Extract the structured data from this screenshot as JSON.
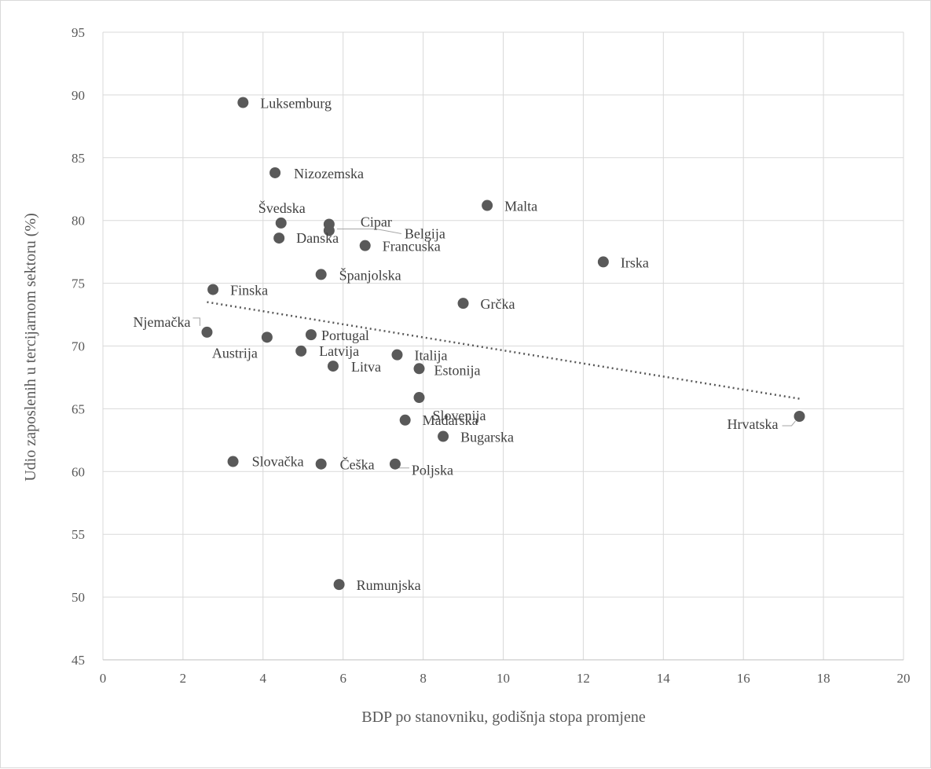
{
  "chart_data": {
    "type": "scatter",
    "xlabel": "BDP po stanovniku, godišnja stopa promjene",
    "ylabel": "Udio zaposlenih u tercijarnom sektoru (%)",
    "xlim": [
      0,
      20
    ],
    "ylim": [
      45,
      95
    ],
    "x_ticks": [
      "0",
      "2",
      "4",
      "6",
      "8",
      "10",
      "12",
      "14",
      "16",
      "18",
      "20"
    ],
    "y_ticks": [
      "45",
      "50",
      "55",
      "60",
      "65",
      "70",
      "75",
      "80",
      "85",
      "90",
      "95"
    ],
    "grid": true,
    "points": [
      {
        "label": "Luksemburg",
        "x": 3.5,
        "y": 89.4
      },
      {
        "label": "Nizozemska",
        "x": 4.3,
        "y": 83.8
      },
      {
        "label": "Malta",
        "x": 9.6,
        "y": 81.2
      },
      {
        "label": "Švedska",
        "x": 4.45,
        "y": 79.8
      },
      {
        "label": "Cipar",
        "x": 5.65,
        "y": 79.7
      },
      {
        "label": "Belgija",
        "x": 5.65,
        "y": 79.2
      },
      {
        "label": "Danska",
        "x": 4.4,
        "y": 78.6
      },
      {
        "label": "Francuska",
        "x": 6.55,
        "y": 78.0
      },
      {
        "label": "Irska",
        "x": 12.5,
        "y": 76.7
      },
      {
        "label": "Španjolska",
        "x": 5.45,
        "y": 75.7
      },
      {
        "label": "Finska",
        "x": 2.75,
        "y": 74.5
      },
      {
        "label": "Grčka",
        "x": 9.0,
        "y": 73.4
      },
      {
        "label": "Njemačka",
        "x": 2.6,
        "y": 71.1
      },
      {
        "label": "Austrija",
        "x": 4.1,
        "y": 70.7
      },
      {
        "label": "Portugal",
        "x": 5.2,
        "y": 70.9
      },
      {
        "label": "Latvija",
        "x": 4.95,
        "y": 69.6
      },
      {
        "label": "Italija",
        "x": 7.35,
        "y": 69.3
      },
      {
        "label": "Litva",
        "x": 5.75,
        "y": 68.4
      },
      {
        "label": "Estonija",
        "x": 7.9,
        "y": 68.2
      },
      {
        "label": "Slovenija",
        "x": 7.9,
        "y": 65.9
      },
      {
        "label": "Mađarska",
        "x": 7.55,
        "y": 64.1
      },
      {
        "label": "Hrvatska",
        "x": 17.4,
        "y": 64.4
      },
      {
        "label": "Bugarska",
        "x": 8.5,
        "y": 62.8
      },
      {
        "label": "Slovačka",
        "x": 3.25,
        "y": 60.8
      },
      {
        "label": "Češka",
        "x": 5.45,
        "y": 60.6
      },
      {
        "label": "Poljska",
        "x": 7.3,
        "y": 60.6
      },
      {
        "label": "Rumunjska",
        "x": 5.9,
        "y": 51.0
      }
    ],
    "trendline": {
      "style": "dotted",
      "x": [
        2.6,
        17.4
      ],
      "y": [
        73.5,
        65.8
      ]
    }
  }
}
